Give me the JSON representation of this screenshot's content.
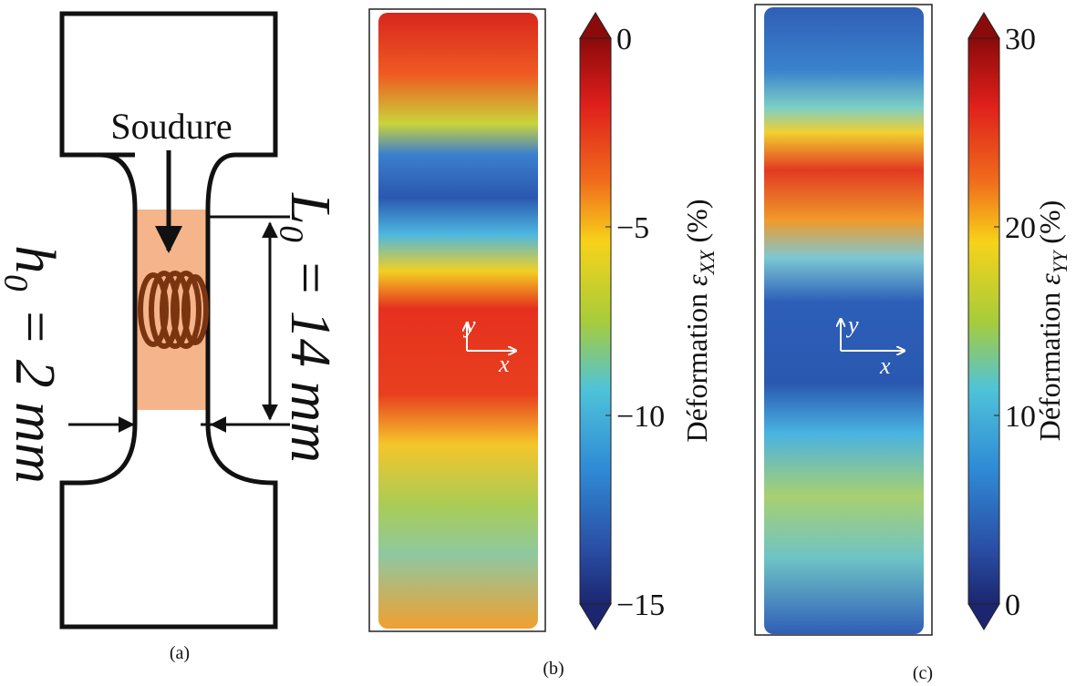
{
  "panel_a": {
    "weld_label": "Soudure",
    "length_label": "L₀ = 14 mm",
    "thickness_label": "h₀ = 2 mm",
    "caption": "(a)"
  },
  "panel_b": {
    "axes": {
      "x": "x",
      "y": "y"
    },
    "colorbar": {
      "label": "Déformation ",
      "symbol": "ε",
      "subscript": "XX",
      "unit": " (%)",
      "lim": [
        -15,
        0
      ],
      "ticks": [
        {
          "value": 0,
          "label": "0"
        },
        {
          "value": -5,
          "label": "−5"
        },
        {
          "value": -10,
          "label": "−10"
        },
        {
          "value": -15,
          "label": "−15"
        }
      ]
    },
    "caption": "(b)"
  },
  "panel_c": {
    "axes": {
      "x": "x",
      "y": "y"
    },
    "colorbar": {
      "label": "Déformation ",
      "symbol": "ε",
      "subscript": "YY",
      "unit": " (%)",
      "lim": [
        0,
        30
      ],
      "ticks": [
        0,
        10,
        20,
        30
      ]
    },
    "caption": "(c)"
  }
}
